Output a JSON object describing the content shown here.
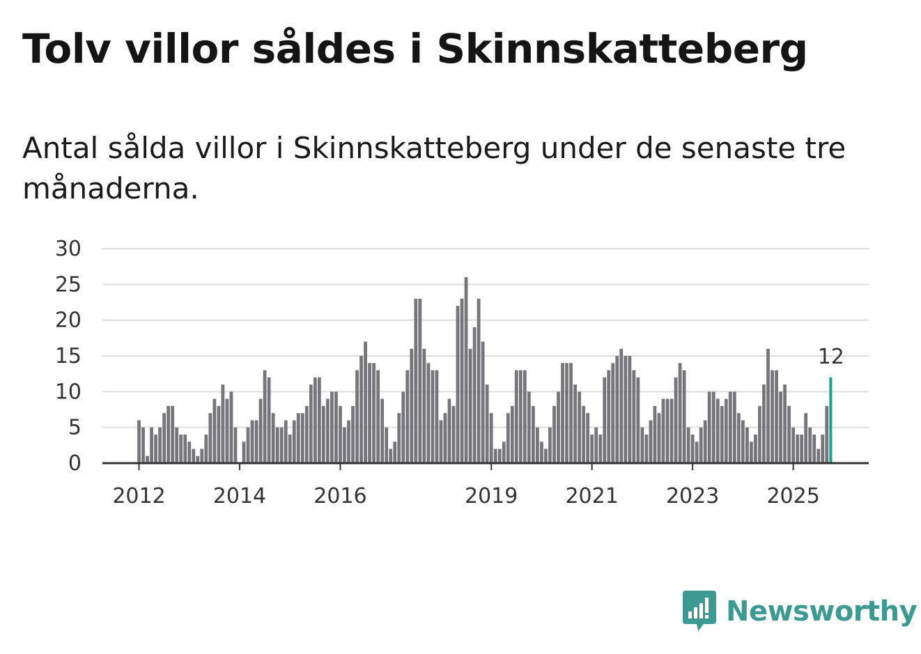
{
  "header": {
    "title": "Tolv villor såldes i Skinnskatteberg",
    "subtitle": "Antal sålda villor i Skinnskatteberg under de senaste tre månaderna."
  },
  "brand": {
    "name": "Newsworthy",
    "color": "#3d9a92",
    "icon": "newsworthy-logo-icon"
  },
  "colors": {
    "bar": "#76757a",
    "highlight": "#1a9e8f",
    "grid": "#dddddd",
    "axis": "#333333"
  },
  "chart_data": {
    "type": "bar",
    "title": "Tolv villor såldes i Skinnskatteberg",
    "xlabel": "",
    "ylabel": "",
    "ylim": [
      0,
      30
    ],
    "yticks": [
      0,
      5,
      10,
      15,
      20,
      25,
      30
    ],
    "start": "2012-01",
    "xticks": [
      {
        "label": "2012",
        "index": 0
      },
      {
        "label": "2014",
        "index": 24
      },
      {
        "label": "2016",
        "index": 48
      },
      {
        "label": "2019",
        "index": 84
      },
      {
        "label": "2021",
        "index": 108
      },
      {
        "label": "2023",
        "index": 132
      },
      {
        "label": "2025",
        "index": 156
      }
    ],
    "values": [
      6,
      5,
      1,
      5,
      4,
      5,
      7,
      8,
      8,
      5,
      4,
      4,
      3,
      2,
      1,
      2,
      4,
      7,
      9,
      8,
      11,
      9,
      10,
      5,
      0,
      3,
      5,
      6,
      6,
      9,
      13,
      12,
      7,
      5,
      5,
      6,
      4,
      6,
      7,
      7,
      8,
      11,
      12,
      12,
      8,
      9,
      10,
      10,
      8,
      5,
      6,
      8,
      13,
      15,
      17,
      14,
      14,
      13,
      9,
      5,
      2,
      3,
      7,
      10,
      13,
      16,
      23,
      23,
      16,
      14,
      13,
      13,
      6,
      7,
      9,
      8,
      22,
      23,
      26,
      16,
      19,
      23,
      17,
      11,
      7,
      2,
      2,
      3,
      7,
      8,
      13,
      13,
      13,
      10,
      8,
      5,
      3,
      2,
      5,
      8,
      10,
      14,
      14,
      14,
      11,
      10,
      8,
      7,
      4,
      5,
      4,
      12,
      13,
      14,
      15,
      16,
      15,
      15,
      13,
      12,
      5,
      4,
      6,
      8,
      7,
      9,
      9,
      9,
      12,
      14,
      13,
      5,
      4,
      3,
      5,
      6,
      10,
      10,
      9,
      8,
      9,
      10,
      10,
      7,
      6,
      5,
      3,
      4,
      8,
      11,
      16,
      13,
      13,
      10,
      11,
      8,
      5,
      4,
      4,
      7,
      5,
      4,
      2,
      4,
      8,
      12
    ],
    "highlight_index": 165,
    "highlight_label": "12"
  }
}
